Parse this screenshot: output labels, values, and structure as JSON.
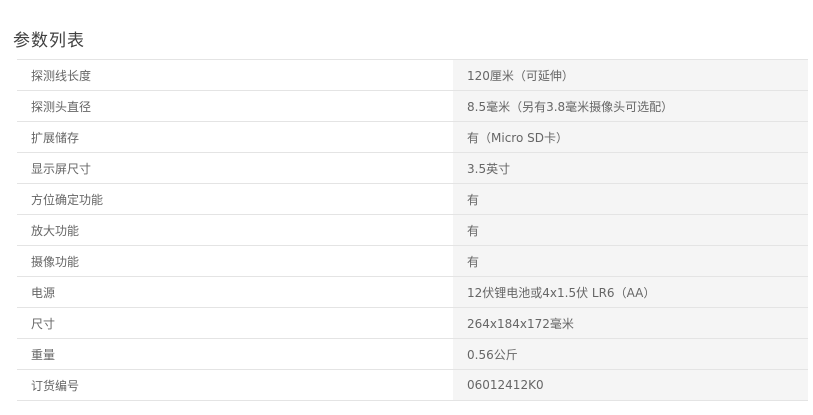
{
  "page": {
    "title": "参数列表"
  },
  "table": {
    "rows": [
      {
        "label": "探测线长度",
        "value": "120厘米（可延伸）"
      },
      {
        "label": "探测头直径",
        "value": "8.5毫米（另有3.8毫米摄像头可选配）"
      },
      {
        "label": "扩展储存",
        "value": "有（Micro SD卡）"
      },
      {
        "label": "显示屏尺寸",
        "value": "3.5英寸"
      },
      {
        "label": "方位确定功能",
        "value": "有"
      },
      {
        "label": "放大功能",
        "value": "有"
      },
      {
        "label": "摄像功能",
        "value": "有"
      },
      {
        "label": "电源",
        "value": "12伏锂电池或4x1.5伏 LR6（AA）"
      },
      {
        "label": "尺寸",
        "value": "264x184x172毫米"
      },
      {
        "label": "重量",
        "value": "0.56公斤"
      },
      {
        "label": "订货编号",
        "value": "06012412K0"
      }
    ]
  },
  "colors": {
    "value_cell_bg": "#f5f5f5",
    "divider": "#e4e4e4",
    "body_text": "#666666",
    "title_text": "#404040"
  }
}
